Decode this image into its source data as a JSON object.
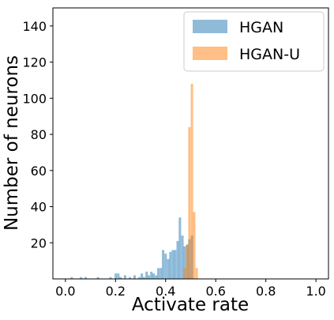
{
  "chart_data": {
    "type": "bar",
    "title": "",
    "xlabel": "Activate rate",
    "ylabel": "Number of neurons",
    "xlim": [
      -0.05,
      1.05
    ],
    "ylim": [
      0,
      150
    ],
    "xticks": [
      "0.0",
      "0.2",
      "0.4",
      "0.6",
      "0.8",
      "1.0"
    ],
    "xtick_values": [
      0.0,
      0.2,
      0.4,
      0.6,
      0.8,
      1.0
    ],
    "yticks": [
      "20",
      "40",
      "60",
      "80",
      "100",
      "120",
      "140"
    ],
    "ytick_values": [
      20,
      40,
      60,
      80,
      100,
      120,
      140
    ],
    "grid": false,
    "legend_position": "top-right",
    "bin_width": 0.0096,
    "series": [
      {
        "name": "HGAN",
        "color": "#1f77b4",
        "opacity": 0.5,
        "bins": [
          {
            "x": 0.025,
            "y": 1
          },
          {
            "x": 0.062,
            "y": 1
          },
          {
            "x": 0.081,
            "y": 1
          },
          {
            "x": 0.13,
            "y": 1
          },
          {
            "x": 0.18,
            "y": 1
          },
          {
            "x": 0.201,
            "y": 3
          },
          {
            "x": 0.211,
            "y": 3
          },
          {
            "x": 0.22,
            "y": 1
          },
          {
            "x": 0.238,
            "y": 2
          },
          {
            "x": 0.257,
            "y": 1
          },
          {
            "x": 0.276,
            "y": 2
          },
          {
            "x": 0.295,
            "y": 1
          },
          {
            "x": 0.305,
            "y": 3
          },
          {
            "x": 0.314,
            "y": 1
          },
          {
            "x": 0.324,
            "y": 4
          },
          {
            "x": 0.333,
            "y": 2
          },
          {
            "x": 0.343,
            "y": 4
          },
          {
            "x": 0.352,
            "y": 3
          },
          {
            "x": 0.362,
            "y": 2
          },
          {
            "x": 0.371,
            "y": 6
          },
          {
            "x": 0.381,
            "y": 6
          },
          {
            "x": 0.39,
            "y": 16
          },
          {
            "x": 0.4,
            "y": 14
          },
          {
            "x": 0.41,
            "y": 11
          },
          {
            "x": 0.419,
            "y": 15
          },
          {
            "x": 0.429,
            "y": 16
          },
          {
            "x": 0.438,
            "y": 16
          },
          {
            "x": 0.448,
            "y": 21
          },
          {
            "x": 0.457,
            "y": 34
          },
          {
            "x": 0.467,
            "y": 24
          },
          {
            "x": 0.476,
            "y": 18
          },
          {
            "x": 0.486,
            "y": 19
          },
          {
            "x": 0.495,
            "y": 22
          },
          {
            "x": 0.505,
            "y": 24
          }
        ]
      },
      {
        "name": "HGAN-U",
        "color": "#ff7f0e",
        "opacity": 0.5,
        "bins": [
          {
            "x": 0.476,
            "y": 6
          },
          {
            "x": 0.486,
            "y": 19
          },
          {
            "x": 0.495,
            "y": 84
          },
          {
            "x": 0.505,
            "y": 108
          },
          {
            "x": 0.514,
            "y": 37
          },
          {
            "x": 0.524,
            "y": 6
          }
        ]
      }
    ]
  }
}
